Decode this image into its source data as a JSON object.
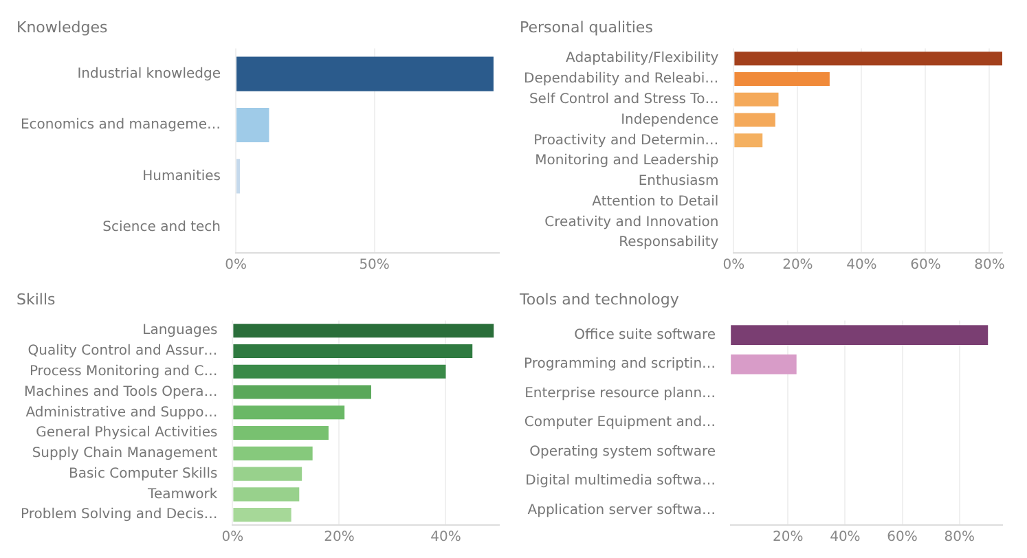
{
  "chart_data": [
    {
      "type": "bar",
      "orientation": "horizontal",
      "title": "Knowledges",
      "categories": [
        "Industrial knowledge",
        "Economics and manageme…",
        "Humanities",
        "Science and tech"
      ],
      "values": [
        93,
        12,
        1.5,
        null
      ],
      "colors": [
        "#2b5b8c",
        "#9fcbe8",
        "#c5d9ec",
        "#dde9f3"
      ],
      "xlim": [
        0,
        95
      ],
      "xticks": [
        {
          "value": 0,
          "label": "0%"
        },
        {
          "value": 50,
          "label": "50%"
        }
      ],
      "grid": "x"
    },
    {
      "type": "bar",
      "orientation": "horizontal",
      "title": "Personal qualities",
      "categories": [
        "Adaptability/Flexibility",
        "Dependability and Releabi…",
        "Self Control and Stress To…",
        "Independence",
        "Proactivity and Determin…",
        "Monitoring and Leadership",
        "Enthusiasm",
        "Attention to Detail",
        "Creativity and Innovation",
        "Responsability"
      ],
      "values": [
        84,
        30,
        14,
        13,
        9,
        0,
        0,
        0,
        0,
        0
      ],
      "colors": [
        "#a3401c",
        "#f08a3a",
        "#f4a95a",
        "#f4a95a",
        "#f4b060",
        "#f6c080",
        "#f6c080",
        "#f6c080",
        "#f6c080",
        "#f6c080"
      ],
      "xlim": [
        0,
        84
      ],
      "xticks": [
        {
          "value": 0,
          "label": "0%"
        },
        {
          "value": 20,
          "label": "20%"
        },
        {
          "value": 40,
          "label": "40%"
        },
        {
          "value": 60,
          "label": "60%"
        },
        {
          "value": 80,
          "label": "80%"
        }
      ],
      "grid": "x"
    },
    {
      "type": "bar",
      "orientation": "horizontal",
      "title": "Skills",
      "categories": [
        "Languages",
        "Quality Control and Assur…",
        "Process Monitoring and C…",
        "Machines and Tools Opera…",
        "Administrative and Suppo…",
        "General Physical Activities",
        "Supply Chain Management",
        "Basic Computer Skills",
        "Teamwork",
        "Problem Solving and Decis…"
      ],
      "values": [
        49,
        45,
        40,
        26,
        21,
        18,
        15,
        13,
        12.5,
        11
      ],
      "colors": [
        "#2a6e3a",
        "#2f7a40",
        "#3a8a48",
        "#5aa85a",
        "#6ab866",
        "#78c170",
        "#86c97c",
        "#98d18c",
        "#98d18c",
        "#a6d898"
      ],
      "xlim": [
        0,
        50
      ],
      "xticks": [
        {
          "value": 0,
          "label": "0%"
        },
        {
          "value": 20,
          "label": "20%"
        },
        {
          "value": 40,
          "label": "40%"
        }
      ],
      "grid": "x"
    },
    {
      "type": "bar",
      "orientation": "horizontal",
      "title": "Tools and technology",
      "categories": [
        "Office suite software",
        "Programming and scriptin…",
        "Enterprise resource plann…",
        "Computer Equipment and…",
        "Operating system software",
        "Digital multimedia softwa…",
        "Application server softwa…"
      ],
      "values": [
        90,
        23,
        0,
        0,
        0,
        0,
        0
      ],
      "colors": [
        "#7a3e72",
        "#d89cc8",
        "#e0c0d8",
        "#e0c0d8",
        "#e0c0d8",
        "#e0c0d8",
        "#e0c0d8"
      ],
      "xlim": [
        0,
        95
      ],
      "xticks": [
        {
          "value": 20,
          "label": "20%"
        },
        {
          "value": 40,
          "label": "40%"
        },
        {
          "value": 60,
          "label": "60%"
        },
        {
          "value": 80,
          "label": "80%"
        }
      ],
      "grid": "x"
    }
  ]
}
